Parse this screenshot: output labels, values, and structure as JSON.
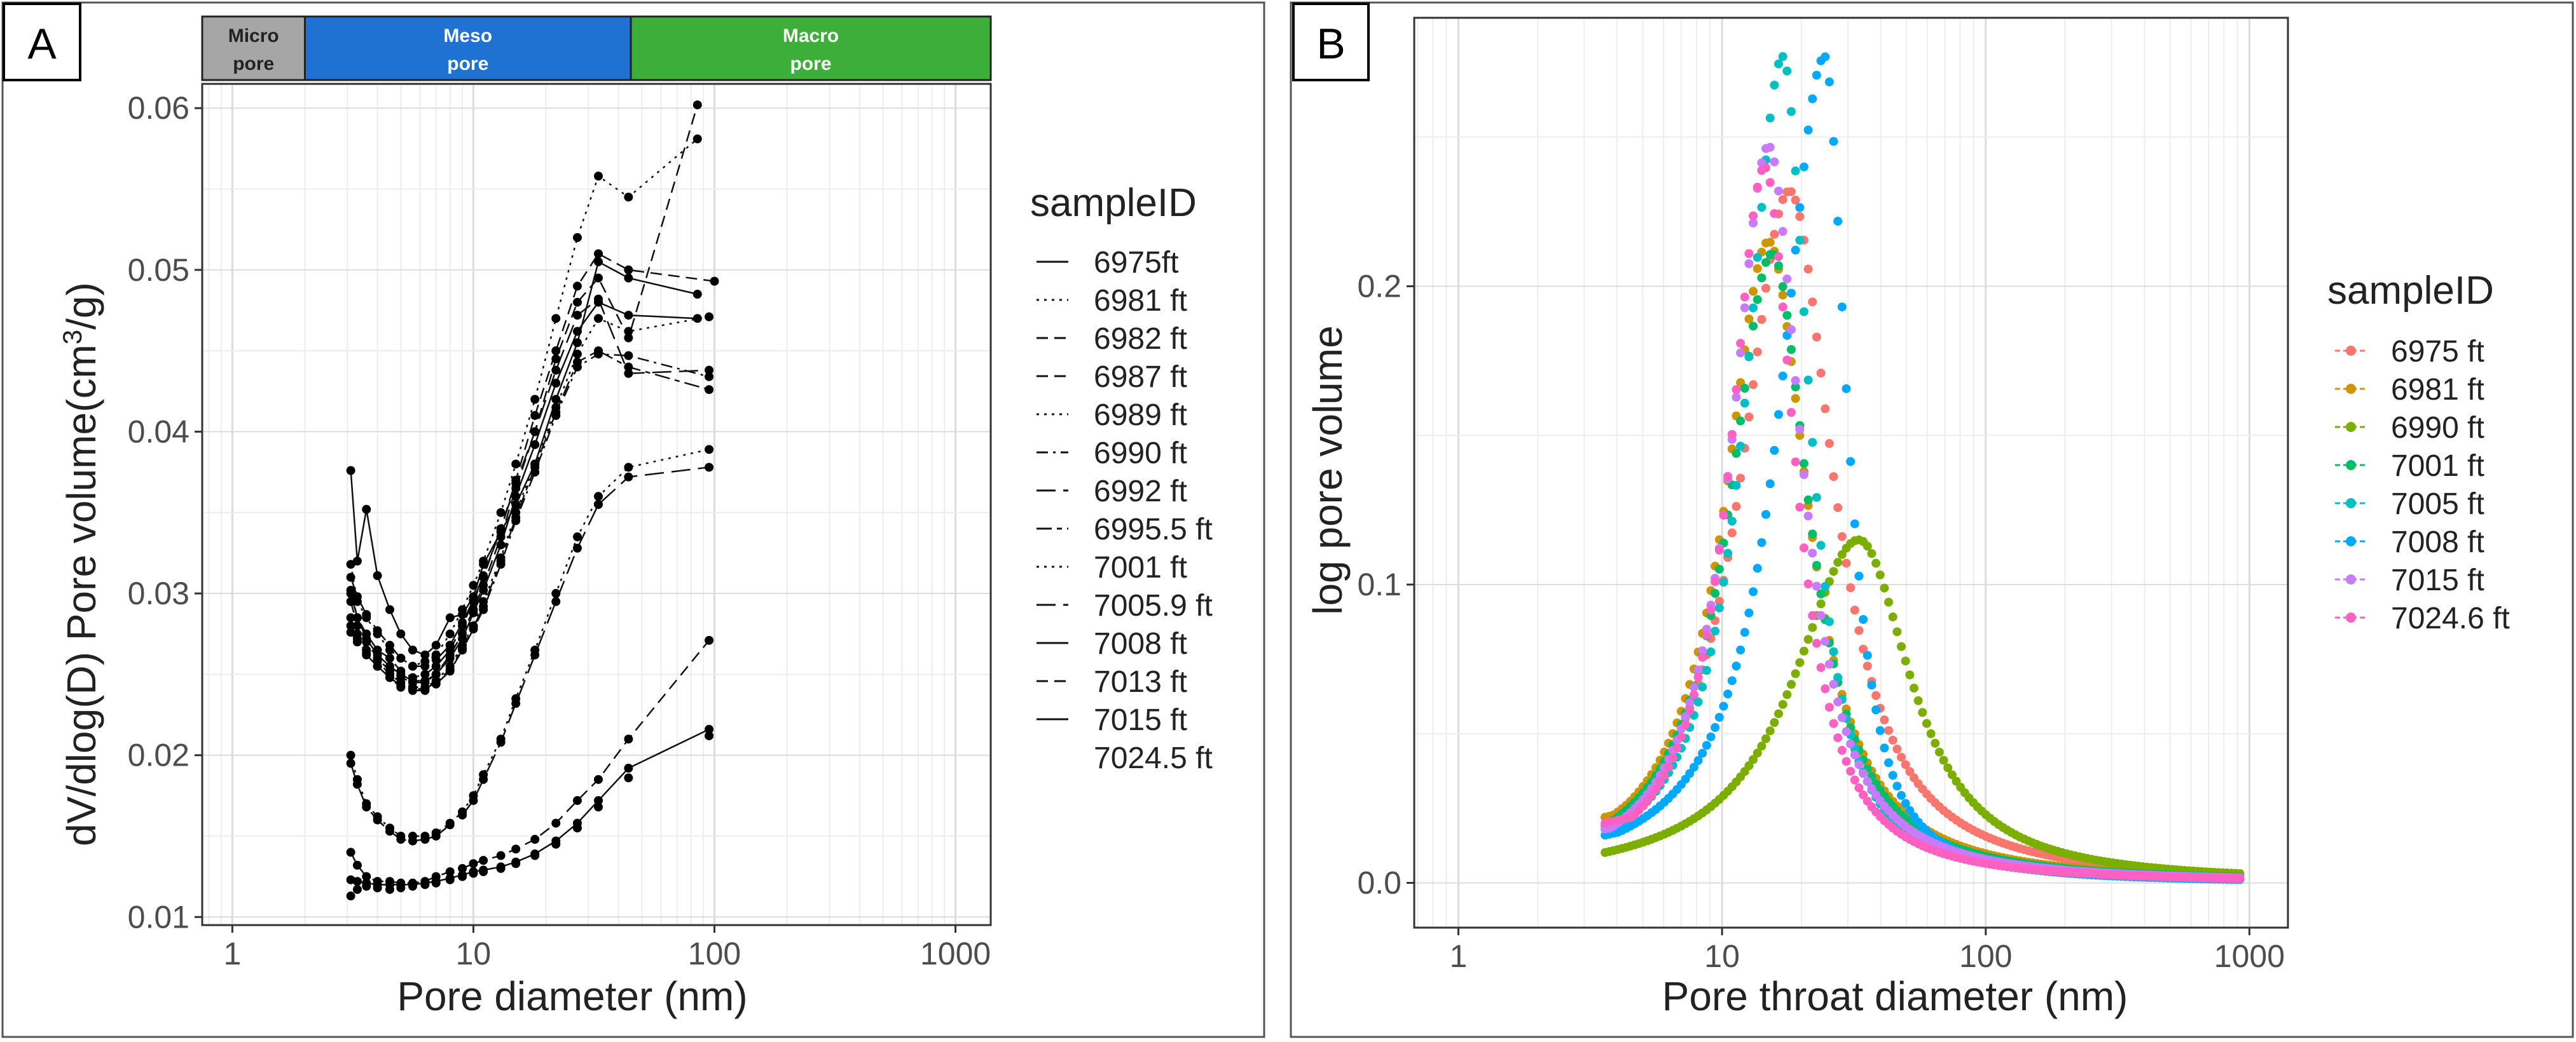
{
  "chart_data": [
    {
      "type": "scatter",
      "panel_label": "A",
      "xlabel": "Pore diameter (nm)",
      "ylabel_main": "dV/dlog(D) Pore volume(cm",
      "ylabel_sup": "3",
      "ylabel_tail": "/g)",
      "x_scale": "log10",
      "xlim": [
        0.75,
        1400
      ],
      "ylim": [
        0.0095,
        0.0615
      ],
      "x_ticks": [
        1,
        10,
        100,
        1000
      ],
      "x_tick_labels": [
        "1",
        "10",
        "100",
        "1000"
      ],
      "y_ticks": [
        0.01,
        0.02,
        0.03,
        0.04,
        0.05,
        0.06
      ],
      "y_tick_labels": [
        "0.01",
        "0.02",
        "0.03",
        "0.04",
        "0.05",
        "0.06"
      ],
      "pore_bands": [
        {
          "name": "Micro",
          "sub": "pore",
          "from": 0.75,
          "to": 2,
          "color": "#a6a6a6"
        },
        {
          "name": "Meso",
          "sub": "pore",
          "from": 2,
          "to": 45,
          "color": "#1f72d2"
        },
        {
          "name": "Macro",
          "sub": "pore",
          "from": 45,
          "to": 1400,
          "color": "#3dae3a"
        }
      ],
      "legend_title": "sampleID",
      "legend_position": "right",
      "series": [
        {
          "name": "6975ft",
          "dash": "solid",
          "x": [
            3.1,
            3.3,
            3.6,
            4,
            4.5,
            5,
            5.6,
            6.3,
            7,
            8,
            9,
            10,
            11,
            13,
            15,
            18,
            22,
            27,
            33,
            44,
            85
          ],
          "y": [
            0.0376,
            0.032,
            0.0352,
            0.0311,
            0.029,
            0.0275,
            0.0265,
            0.0262,
            0.0268,
            0.0285,
            0.0287,
            0.0298,
            0.0318,
            0.0338,
            0.0355,
            0.038,
            0.042,
            0.0455,
            0.0505,
            0.0495,
            0.0485
          ]
        },
        {
          "name": "6981 ft",
          "dash": "dot",
          "x": [
            3.1,
            3.3,
            3.6,
            4,
            4.5,
            5,
            5.6,
            6.3,
            7,
            8,
            9,
            10,
            11,
            13,
            15,
            18,
            22,
            27,
            33,
            44,
            85
          ],
          "y": [
            0.0318,
            0.0295,
            0.0285,
            0.0275,
            0.0265,
            0.026,
            0.0255,
            0.0258,
            0.0262,
            0.0275,
            0.029,
            0.0305,
            0.032,
            0.035,
            0.038,
            0.042,
            0.047,
            0.052,
            0.0558,
            0.0545,
            0.0581
          ]
        },
        {
          "name": "6982 ft",
          "dash": "dash",
          "x": [
            3.1,
            3.3,
            3.6,
            4,
            4.5,
            5,
            5.6,
            6.3,
            7,
            8,
            9,
            10,
            11,
            13,
            15,
            18,
            22,
            27,
            33,
            44,
            100
          ],
          "y": [
            0.0302,
            0.0285,
            0.0275,
            0.0265,
            0.026,
            0.0252,
            0.0248,
            0.025,
            0.0255,
            0.0265,
            0.028,
            0.0295,
            0.031,
            0.034,
            0.037,
            0.041,
            0.045,
            0.049,
            0.051,
            0.05,
            0.0493
          ]
        },
        {
          "name": "6987 ft",
          "dash": "dash",
          "x": [
            3.1,
            3.3,
            3.6,
            4,
            4.5,
            5,
            5.6,
            6.3,
            7,
            8,
            9,
            10,
            11,
            13,
            15,
            18,
            22,
            27,
            33,
            44,
            85
          ],
          "y": [
            0.0295,
            0.028,
            0.027,
            0.026,
            0.0252,
            0.0248,
            0.0245,
            0.0245,
            0.025,
            0.0262,
            0.0275,
            0.029,
            0.0305,
            0.0335,
            0.0365,
            0.04,
            0.0445,
            0.048,
            0.0495,
            0.0458,
            0.0602
          ]
        },
        {
          "name": "6989 ft",
          "dash": "dot",
          "x": [
            3.1,
            3.3,
            3.6,
            4,
            4.5,
            5,
            5.6,
            6.3,
            7,
            8,
            9,
            10,
            11,
            13,
            15,
            18,
            22,
            27,
            33,
            44,
            95
          ],
          "y": [
            0.0285,
            0.0275,
            0.0265,
            0.0258,
            0.025,
            0.0245,
            0.0242,
            0.0242,
            0.0246,
            0.0255,
            0.0268,
            0.028,
            0.0295,
            0.0322,
            0.035,
            0.038,
            0.0415,
            0.0448,
            0.047,
            0.0462,
            0.0471
          ]
        },
        {
          "name": "6990 ft",
          "dash": "dashdot",
          "x": [
            3.1,
            3.3,
            3.6,
            4,
            4.5,
            5,
            5.6,
            6.3,
            7,
            8,
            9,
            10,
            11,
            13,
            15,
            18,
            22,
            27,
            33,
            44,
            95
          ],
          "y": [
            0.028,
            0.0272,
            0.0263,
            0.0255,
            0.0248,
            0.0242,
            0.024,
            0.024,
            0.0244,
            0.0252,
            0.0265,
            0.0278,
            0.029,
            0.0318,
            0.0345,
            0.0375,
            0.041,
            0.044,
            0.0448,
            0.0447,
            0.0434
          ]
        },
        {
          "name": "6992 ft",
          "dash": "longdash",
          "x": [
            3.1,
            3.3,
            3.6,
            4,
            4.5,
            5,
            5.6,
            6.3,
            7,
            8,
            9,
            10,
            11,
            13,
            15,
            18,
            22,
            27,
            33,
            44,
            95
          ],
          "y": [
            0.031,
            0.0298,
            0.0287,
            0.0277,
            0.0268,
            0.026,
            0.0255,
            0.0255,
            0.0259,
            0.0268,
            0.0282,
            0.0296,
            0.0311,
            0.034,
            0.0368,
            0.04,
            0.0438,
            0.0472,
            0.0482,
            0.0436,
            0.0438
          ]
        },
        {
          "name": "6995.5 ft",
          "dash": "twodash",
          "x": [
            3.1,
            3.3,
            3.6,
            4,
            4.5,
            5,
            5.6,
            6.3,
            7,
            8,
            9,
            10,
            11,
            13,
            15,
            18,
            22,
            27,
            33,
            44,
            95
          ],
          "y": [
            0.0276,
            0.027,
            0.0262,
            0.0255,
            0.0248,
            0.0243,
            0.0241,
            0.0241,
            0.0245,
            0.0253,
            0.0266,
            0.0279,
            0.0292,
            0.032,
            0.0347,
            0.0378,
            0.0412,
            0.0443,
            0.045,
            0.044,
            0.0426
          ]
        },
        {
          "name": "7001 ft",
          "dash": "dot",
          "x": [
            3.1,
            3.3,
            3.6,
            4,
            4.5,
            5,
            5.6,
            6.3,
            7,
            8,
            9,
            10,
            11,
            13,
            15,
            18,
            22,
            27,
            33,
            44,
            95
          ],
          "y": [
            0.02,
            0.0185,
            0.017,
            0.0162,
            0.0155,
            0.015,
            0.015,
            0.015,
            0.0152,
            0.0158,
            0.0165,
            0.0175,
            0.0188,
            0.021,
            0.0235,
            0.0265,
            0.03,
            0.0335,
            0.036,
            0.0378,
            0.0389
          ]
        },
        {
          "name": "7005.9 ft",
          "dash": "longdash",
          "x": [
            3.1,
            3.3,
            3.6,
            4,
            4.5,
            5,
            5.6,
            6.3,
            7,
            8,
            9,
            10,
            11,
            13,
            15,
            18,
            22,
            27,
            33,
            44,
            95
          ],
          "y": [
            0.0195,
            0.0182,
            0.0168,
            0.016,
            0.0153,
            0.0148,
            0.0147,
            0.0148,
            0.015,
            0.0157,
            0.0163,
            0.0172,
            0.0185,
            0.0208,
            0.0232,
            0.0262,
            0.0295,
            0.0328,
            0.0355,
            0.0372,
            0.0378
          ]
        },
        {
          "name": "7008 ft",
          "dash": "solid",
          "x": [
            3.1,
            3.3,
            3.6,
            4,
            4.5,
            5,
            5.6,
            6.3,
            7,
            8,
            9,
            10,
            11,
            13,
            15,
            18,
            22,
            27,
            33,
            44,
            85
          ],
          "y": [
            0.03,
            0.0285,
            0.0272,
            0.0262,
            0.0255,
            0.025,
            0.0246,
            0.0246,
            0.025,
            0.026,
            0.0272,
            0.0288,
            0.0302,
            0.033,
            0.036,
            0.0392,
            0.043,
            0.0462,
            0.048,
            0.0472,
            0.047
          ]
        },
        {
          "name": "7013 ft",
          "dash": "dash",
          "x": [
            3.1,
            3.3,
            3.6,
            4,
            4.5,
            5,
            5.6,
            6.3,
            7,
            8,
            9,
            10,
            11,
            13,
            15,
            18,
            22,
            27,
            33,
            44,
            95
          ],
          "y": [
            0.014,
            0.0132,
            0.0125,
            0.0122,
            0.0122,
            0.0121,
            0.0121,
            0.0122,
            0.0125,
            0.0128,
            0.013,
            0.0133,
            0.0135,
            0.0138,
            0.0142,
            0.0148,
            0.0158,
            0.0172,
            0.0185,
            0.021,
            0.0271
          ]
        },
        {
          "name": "7015 ft",
          "dash": "solid",
          "x": [
            3.1,
            3.3,
            3.6,
            4,
            4.5,
            5,
            5.6,
            6.3,
            7,
            8,
            9,
            10,
            11,
            13,
            15,
            18,
            22,
            27,
            33,
            44,
            95
          ],
          "y": [
            0.0123,
            0.0122,
            0.0121,
            0.012,
            0.012,
            0.012,
            0.012,
            0.0121,
            0.0122,
            0.0124,
            0.0126,
            0.0128,
            0.0129,
            0.0131,
            0.0134,
            0.0139,
            0.0147,
            0.0158,
            0.0172,
            0.0192,
            0.0216
          ]
        },
        {
          "name": "7024.5 ft",
          "dash": "none",
          "x": [
            3.1,
            3.3,
            3.6,
            4,
            4.5,
            5,
            5.6,
            6.3,
            7,
            8,
            9,
            10,
            11,
            13,
            15,
            18,
            22,
            27,
            33,
            44,
            95
          ],
          "y": [
            0.0113,
            0.0117,
            0.0119,
            0.0118,
            0.0117,
            0.0118,
            0.0119,
            0.012,
            0.0121,
            0.0123,
            0.0125,
            0.0127,
            0.0128,
            0.013,
            0.0133,
            0.0138,
            0.0145,
            0.0155,
            0.0168,
            0.0186,
            0.0212
          ]
        }
      ]
    },
    {
      "type": "line",
      "panel_label": "B",
      "xlabel": "Pore throat diameter (nm)",
      "ylabel": "log pore volume",
      "x_scale": "log10",
      "xlim": [
        0.68,
        1400
      ],
      "ylim": [
        -0.015,
        0.29
      ],
      "x_ticks": [
        1,
        10,
        100,
        1000
      ],
      "x_tick_labels": [
        "1",
        "10",
        "100",
        "1000"
      ],
      "y_ticks": [
        0,
        0.1,
        0.2
      ],
      "y_tick_labels": [
        "0.0",
        "0.1",
        "0.2"
      ],
      "legend_title": "sampleID",
      "legend_position": "right",
      "series": [
        {
          "name": "6975 ft",
          "color": "#f8766d",
          "peak_x": 18,
          "peak_y": 0.232,
          "width_left": 0.22,
          "width_right": 0.2,
          "start_y": 0.022
        },
        {
          "name": "6981 ft",
          "color": "#cd9600",
          "peak_x": 15,
          "peak_y": 0.215,
          "width_left": 0.2,
          "width_right": 0.18,
          "start_y": 0.022
        },
        {
          "name": "6990 ft",
          "color": "#7cae00",
          "peak_x": 33,
          "peak_y": 0.115,
          "width_left": 0.3,
          "width_right": 0.24,
          "start_y": 0.006
        },
        {
          "name": "7001 ft",
          "color": "#00be67",
          "peak_x": 15.5,
          "peak_y": 0.211,
          "width_left": 0.2,
          "width_right": 0.17,
          "start_y": 0.018
        },
        {
          "name": "7005 ft",
          "color": "#00bfc4",
          "peak_x": 17,
          "peak_y": 0.277,
          "width_left": 0.17,
          "width_right": 0.12,
          "start_y": 0.018
        },
        {
          "name": "7008 ft",
          "color": "#00a9ff",
          "peak_x": 24.5,
          "peak_y": 0.277,
          "width_left": 0.2,
          "width_right": 0.1,
          "start_y": 0.016
        },
        {
          "name": "7015 ft",
          "color": "#c77cff",
          "peak_x": 15,
          "peak_y": 0.247,
          "width_left": 0.17,
          "width_right": 0.15,
          "start_y": 0.018
        },
        {
          "name": "7024.6 ft",
          "color": "#ff61c3",
          "peak_x": 14.5,
          "peak_y": 0.24,
          "width_left": 0.16,
          "width_right": 0.14,
          "start_y": 0.02
        }
      ]
    }
  ]
}
